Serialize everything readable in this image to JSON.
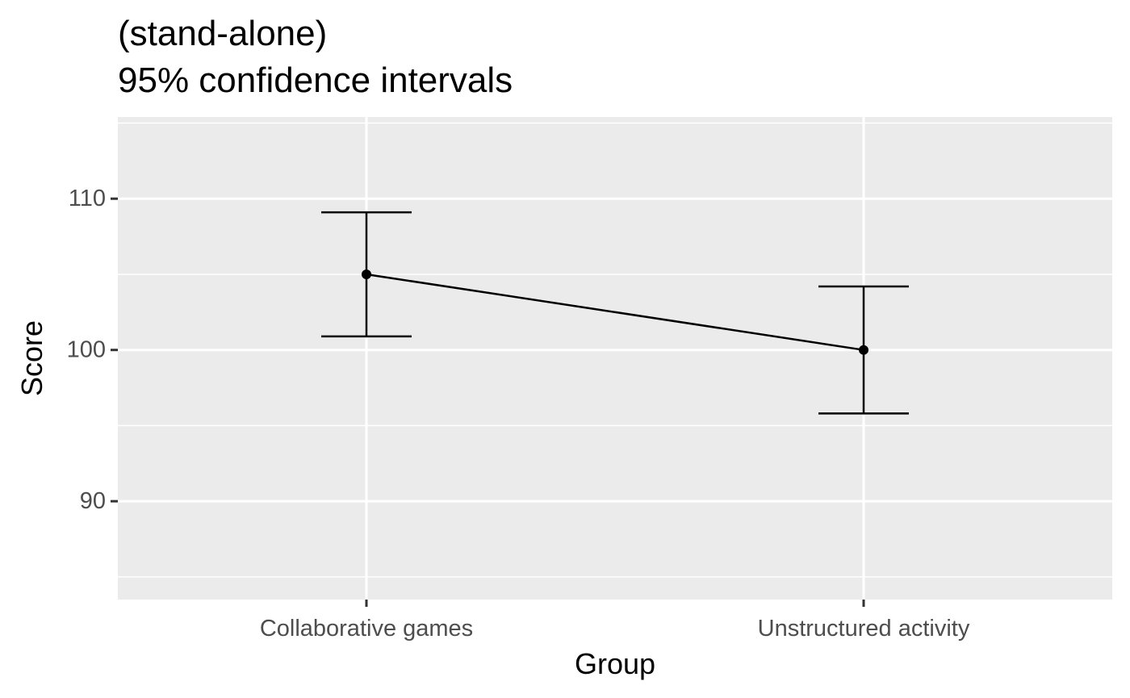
{
  "chart_data": {
    "type": "line",
    "title": "(stand-alone)",
    "subtitle": "95% confidence intervals",
    "xlabel": "Group",
    "ylabel": "Score",
    "categories": [
      "Collaborative games",
      "Unstructured activity"
    ],
    "series": [
      {
        "values": [
          105.0,
          100.0
        ],
        "ci_lower": [
          100.9,
          95.8
        ],
        "ci_upper": [
          109.1,
          104.2
        ]
      }
    ],
    "ylim": [
      83.5,
      115.4
    ],
    "yticks": [
      90,
      100,
      110
    ],
    "y_minor_gridlines": [
      85,
      95,
      105,
      115
    ],
    "grid": true,
    "colors": {
      "panel": "#ebebeb",
      "gridline": "#ffffff",
      "marks": "#000000",
      "tick_label": "#4d4d4d",
      "tick_mark": "#333333"
    }
  }
}
